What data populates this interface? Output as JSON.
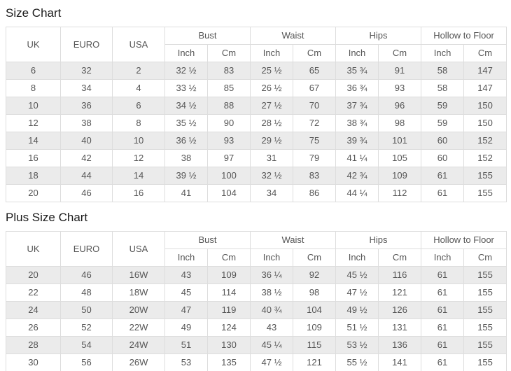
{
  "colors": {
    "stripe": "#ebebeb",
    "border": "#dddddd",
    "cell_text": "#555555",
    "title_text": "#1a1a1a",
    "background": "#ffffff"
  },
  "tables": [
    {
      "title": "Size Chart",
      "main_headers": [
        "UK",
        "EURO",
        "USA"
      ],
      "group_headers": [
        "Bust",
        "Waist",
        "Hips",
        "Hollow to Floor"
      ],
      "unit_headers": [
        "Inch",
        "Cm",
        "Inch",
        "Cm",
        "Inch",
        "Cm",
        "Inch",
        "Cm"
      ],
      "rows": [
        [
          "6",
          "32",
          "2",
          "32 ½",
          "83",
          "25 ½",
          "65",
          "35 ¾",
          "91",
          "58",
          "147"
        ],
        [
          "8",
          "34",
          "4",
          "33 ½",
          "85",
          "26 ½",
          "67",
          "36 ¾",
          "93",
          "58",
          "147"
        ],
        [
          "10",
          "36",
          "6",
          "34 ½",
          "88",
          "27 ½",
          "70",
          "37 ¾",
          "96",
          "59",
          "150"
        ],
        [
          "12",
          "38",
          "8",
          "35 ½",
          "90",
          "28 ½",
          "72",
          "38 ¾",
          "98",
          "59",
          "150"
        ],
        [
          "14",
          "40",
          "10",
          "36 ½",
          "93",
          "29 ½",
          "75",
          "39 ¾",
          "101",
          "60",
          "152"
        ],
        [
          "16",
          "42",
          "12",
          "38",
          "97",
          "31",
          "79",
          "41 ¼",
          "105",
          "60",
          "152"
        ],
        [
          "18",
          "44",
          "14",
          "39 ½",
          "100",
          "32 ½",
          "83",
          "42 ¾",
          "109",
          "61",
          "155"
        ],
        [
          "20",
          "46",
          "16",
          "41",
          "104",
          "34",
          "86",
          "44 ¼",
          "112",
          "61",
          "155"
        ]
      ]
    },
    {
      "title": "Plus Size Chart",
      "main_headers": [
        "UK",
        "EURO",
        "USA"
      ],
      "group_headers": [
        "Bust",
        "Waist",
        "Hips",
        "Hollow to Floor"
      ],
      "unit_headers": [
        "Inch",
        "Cm",
        "Inch",
        "Cm",
        "Inch",
        "Cm",
        "Inch",
        "Cm"
      ],
      "rows": [
        [
          "20",
          "46",
          "16W",
          "43",
          "109",
          "36 ¼",
          "92",
          "45 ½",
          "116",
          "61",
          "155"
        ],
        [
          "22",
          "48",
          "18W",
          "45",
          "114",
          "38 ½",
          "98",
          "47 ½",
          "121",
          "61",
          "155"
        ],
        [
          "24",
          "50",
          "20W",
          "47",
          "119",
          "40 ¾",
          "104",
          "49 ½",
          "126",
          "61",
          "155"
        ],
        [
          "26",
          "52",
          "22W",
          "49",
          "124",
          "43",
          "109",
          "51 ½",
          "131",
          "61",
          "155"
        ],
        [
          "28",
          "54",
          "24W",
          "51",
          "130",
          "45 ¼",
          "115",
          "53 ½",
          "136",
          "61",
          "155"
        ],
        [
          "30",
          "56",
          "26W",
          "53",
          "135",
          "47 ½",
          "121",
          "55 ½",
          "141",
          "61",
          "155"
        ]
      ]
    }
  ]
}
